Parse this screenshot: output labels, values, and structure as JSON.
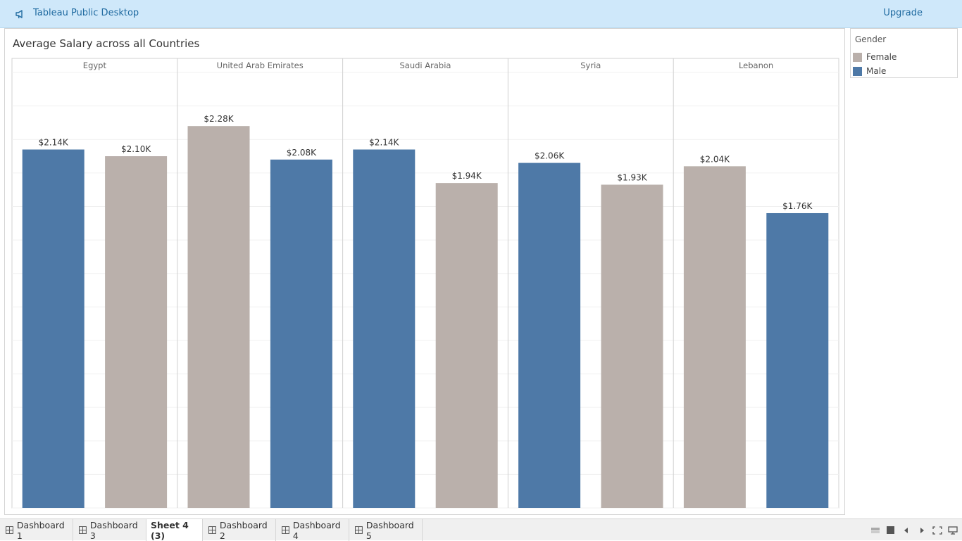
{
  "topbar": {
    "app_title": "Tableau Public Desktop",
    "upgrade_label": "Upgrade",
    "icon": "megaphone-icon"
  },
  "sheet": {
    "title": "Average Salary across all Countries"
  },
  "legend": {
    "title": "Gender",
    "items": [
      {
        "label": "Female",
        "color": "#bab0ab"
      },
      {
        "label": "Male",
        "color": "#4e79a7"
      }
    ]
  },
  "chart_data": {
    "type": "bar",
    "title": "Average Salary across all Countries",
    "ylim": [
      0,
      2600
    ],
    "grid": true,
    "legend_placement": "right",
    "categories": [
      "Egypt",
      "United Arab Emirates",
      "Saudi Arabia",
      "Syria",
      "Lebanon"
    ],
    "panels": [
      {
        "country": "Egypt",
        "bars": [
          {
            "gender": "Male",
            "value": 2140,
            "label": "$2.14K"
          },
          {
            "gender": "Female",
            "value": 2100,
            "label": "$2.10K"
          }
        ]
      },
      {
        "country": "United Arab Emirates",
        "bars": [
          {
            "gender": "Female",
            "value": 2280,
            "label": "$2.28K"
          },
          {
            "gender": "Male",
            "value": 2080,
            "label": "$2.08K"
          }
        ]
      },
      {
        "country": "Saudi Arabia",
        "bars": [
          {
            "gender": "Male",
            "value": 2140,
            "label": "$2.14K"
          },
          {
            "gender": "Female",
            "value": 1940,
            "label": "$1.94K"
          }
        ]
      },
      {
        "country": "Syria",
        "bars": [
          {
            "gender": "Male",
            "value": 2060,
            "label": "$2.06K"
          },
          {
            "gender": "Female",
            "value": 1930,
            "label": "$1.93K"
          }
        ]
      },
      {
        "country": "Lebanon",
        "bars": [
          {
            "gender": "Female",
            "value": 2040,
            "label": "$2.04K"
          },
          {
            "gender": "Male",
            "value": 1760,
            "label": "$1.76K"
          }
        ]
      }
    ],
    "colors": {
      "Female": "#bab0ab",
      "Male": "#4e79a7"
    }
  },
  "tabs": [
    {
      "label": "Dashboard 1",
      "active": false
    },
    {
      "label": "Dashboard 3",
      "active": false
    },
    {
      "label": "Sheet 4 (3)",
      "active": true
    },
    {
      "label": "Dashboard 2",
      "active": false
    },
    {
      "label": "Dashboard 4",
      "active": false
    },
    {
      "label": "Dashboard 5",
      "active": false
    }
  ],
  "controls": [
    "filmstrip-icon",
    "stop-icon",
    "prev-icon",
    "next-icon",
    "fullscreen-icon",
    "presentation-icon"
  ]
}
